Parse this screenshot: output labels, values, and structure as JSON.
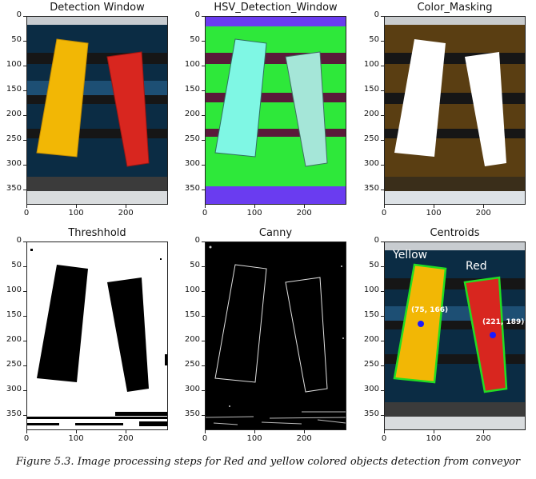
{
  "figure": {
    "panels": [
      {
        "id": "detection",
        "title": "Detection Window"
      },
      {
        "id": "hsv",
        "title": "HSV_Detection_Window"
      },
      {
        "id": "masking",
        "title": "Color_Masking"
      },
      {
        "id": "threshold",
        "title": "Threshhold"
      },
      {
        "id": "canny",
        "title": "Canny"
      },
      {
        "id": "centroids",
        "title": "Centroids"
      }
    ],
    "y_ticks": [
      "0",
      "50",
      "100",
      "150",
      "200",
      "250",
      "300",
      "350"
    ],
    "x_ticks": [
      "0",
      "100",
      "200"
    ],
    "centroids": {
      "yellow_label": "Yellow",
      "red_label": "Red",
      "yellow_point": "(75, 166)",
      "red_point": "(221, 189)"
    },
    "caption": "Figure 5.3.   Image processing steps for Red and yellow colored objects detection from conveyor"
  },
  "colors": {
    "yellow_object": "#f2b705",
    "red_object": "#d8261f",
    "conveyor_dark": "#0b2c44",
    "hsv_green": "#2ee83a",
    "hsv_purple": "#6a3cf0",
    "centroid_dot": "#1a1aff",
    "contour_green": "#22dd22"
  }
}
